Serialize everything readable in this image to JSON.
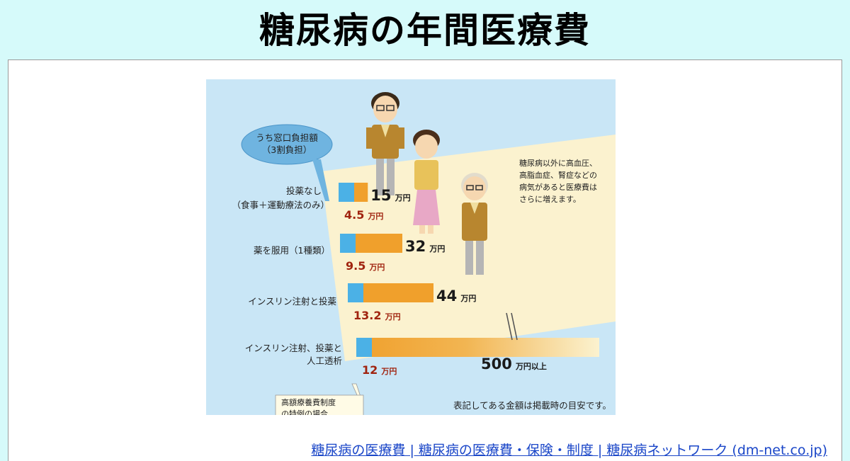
{
  "page": {
    "title": "糖尿病の年間医療費",
    "source_link": "糖尿病の医療費 | 糖尿病の医療費・保険・制度 | 糖尿病ネットワーク (dm-net.co.jp)"
  },
  "chart_data": {
    "type": "bar",
    "orientation": "horizontal",
    "title": "糖尿病の年間医療費",
    "categories": [
      [
        "投薬なし",
        "（食事＋運動療法のみ）"
      ],
      [
        "薬を服用（1種類）"
      ],
      [
        "インスリン注射と投薬"
      ],
      [
        "インスリン注射、投薬と",
        "人工透析"
      ]
    ],
    "series": [
      {
        "key": "total",
        "values": [
          15,
          32,
          44,
          500
        ],
        "labels": [
          "15",
          "32",
          "44",
          "500"
        ],
        "color": "#f0a02c"
      },
      {
        "key": "copay",
        "name": "うち窓口負担額 （3割負担）",
        "values": [
          4.5,
          9.5,
          13.2,
          12
        ],
        "labels": [
          "4.5",
          "9.5",
          "13.2",
          "12"
        ],
        "color": "#4bb1e6"
      }
    ],
    "unit": "万円",
    "last_total_suffix": "万円以上",
    "axis_break_on_last_bar": true,
    "legend_callout": [
      "うち窓口負担額",
      "（3割負担）"
    ],
    "annotations": {
      "side_note": [
        "糖尿病以外に高血圧、",
        "高脂血症、腎症などの",
        "病気があると医療費は",
        "さらに増えます。"
      ],
      "special_note": [
        "高額療養費制度",
        "の特例の場合"
      ],
      "footer_note": "表記してある金額は掲載時の目安です。"
    },
    "colors": {
      "background": "#c9e6f6",
      "band": "#fbf2cf",
      "total_bar": "#f0a02c",
      "copay_bar": "#4bb1e6",
      "copay_text": "#a0230f"
    }
  }
}
